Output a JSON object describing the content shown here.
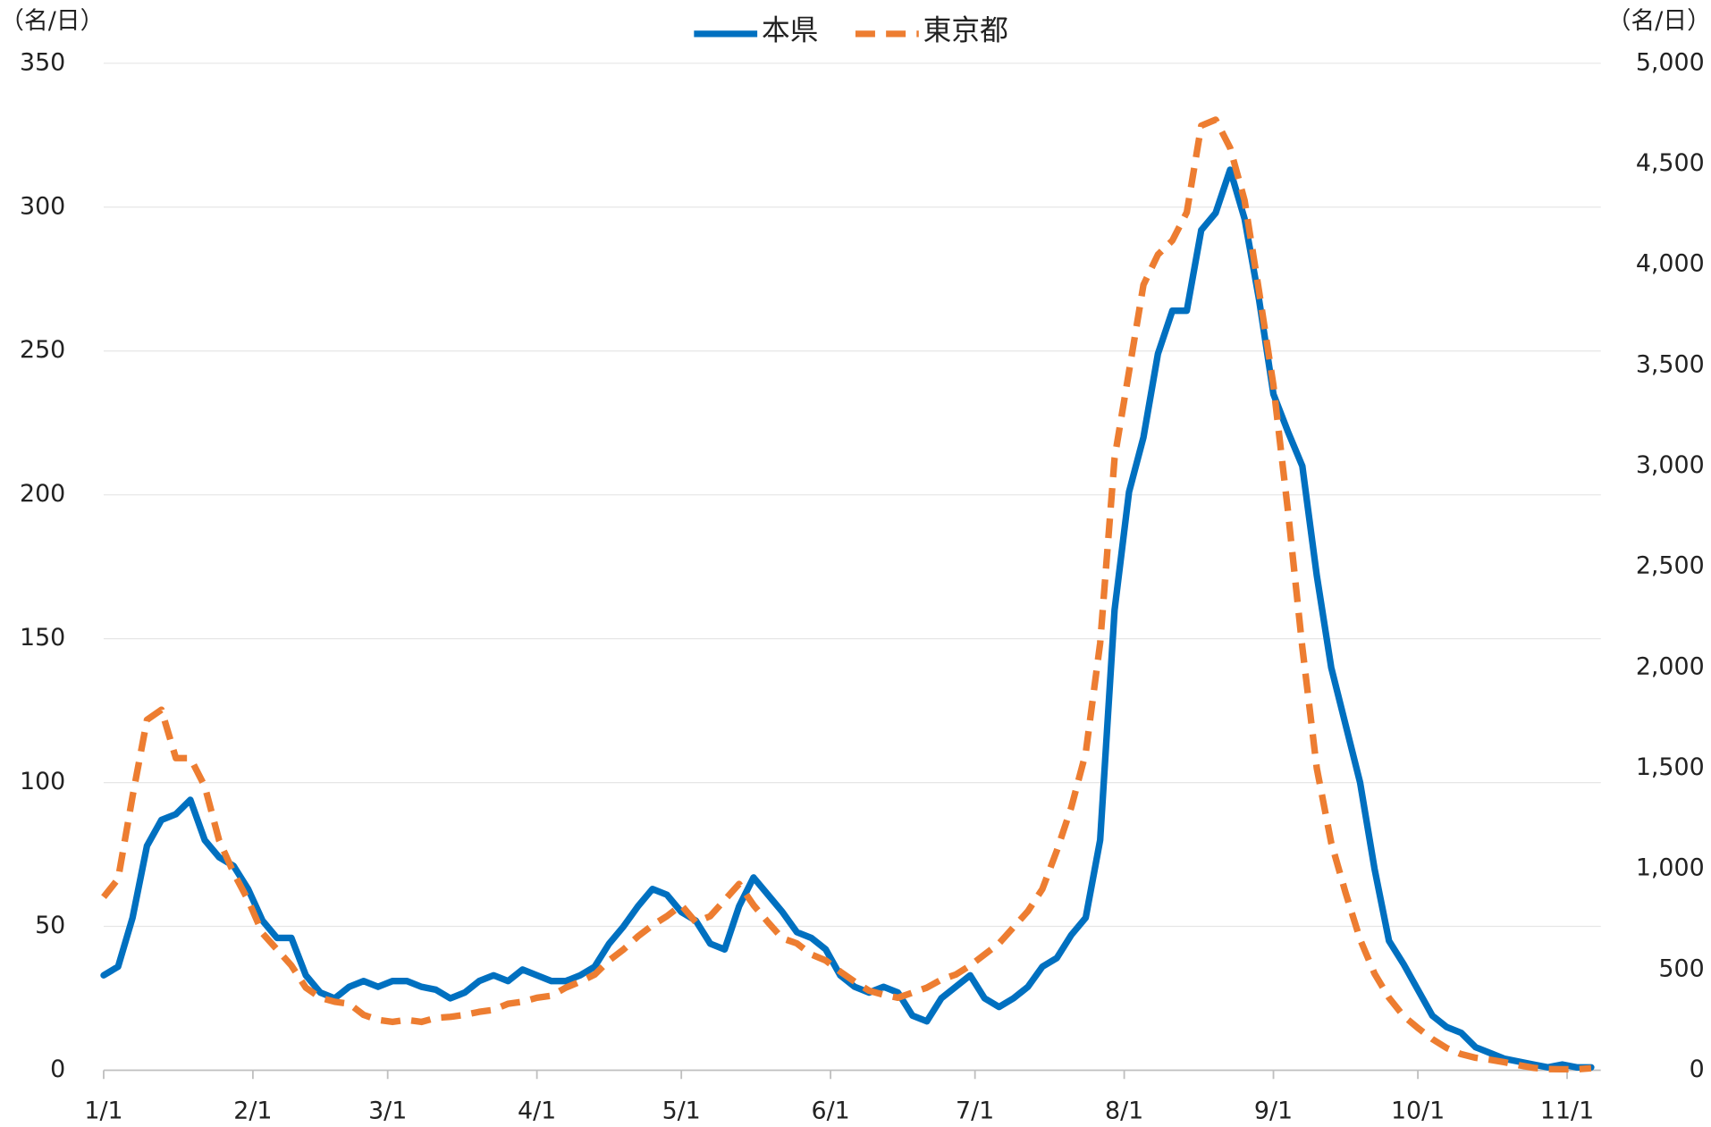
{
  "chart_data": {
    "type": "line",
    "y_label": "（名/日）",
    "y2_label": "（名/日）",
    "x": [
      0,
      3,
      6,
      9,
      12,
      15,
      18,
      21,
      24,
      27,
      30,
      33,
      36,
      39,
      42,
      45,
      48,
      51,
      54,
      57,
      60,
      63,
      66,
      69,
      72,
      75,
      78,
      81,
      84,
      87,
      90,
      93,
      96,
      99,
      102,
      105,
      108,
      111,
      114,
      117,
      120,
      123,
      126,
      129,
      132,
      135,
      138,
      141,
      144,
      147,
      150,
      153,
      156,
      159,
      162,
      165,
      168,
      171,
      174,
      177,
      180,
      183,
      186,
      189,
      192,
      195,
      198,
      201,
      204,
      207,
      210,
      213,
      216,
      219,
      222,
      225,
      228,
      231,
      234,
      237,
      240,
      243,
      246,
      249,
      252,
      255,
      258,
      261,
      264,
      267,
      270,
      273,
      276,
      279,
      282,
      285,
      288,
      291,
      294,
      297,
      300,
      303,
      306,
      309
    ],
    "series": [
      {
        "name": "本県",
        "color": "#0070c0",
        "line": "solid",
        "axis": "y",
        "values": [
          33,
          36,
          53,
          78,
          87,
          89,
          94,
          80,
          74,
          71,
          63,
          52,
          46,
          46,
          33,
          27,
          25,
          29,
          31,
          29,
          31,
          31,
          29,
          28,
          25,
          27,
          31,
          33,
          31,
          35,
          33,
          31,
          31,
          33,
          36,
          44,
          50,
          57,
          63,
          61,
          55,
          52,
          44,
          42,
          57,
          67,
          61,
          55,
          48,
          46,
          42,
          33,
          29,
          27,
          29,
          27,
          19,
          17,
          25,
          29,
          33,
          25,
          22,
          25,
          29,
          36,
          39,
          47,
          53,
          80,
          160,
          201,
          220,
          249,
          264,
          264,
          292,
          298,
          313,
          296,
          268,
          235,
          222,
          210,
          172,
          140,
          120,
          100,
          70,
          45,
          37,
          28,
          19,
          15,
          13,
          8,
          6,
          4,
          3,
          2,
          1,
          2,
          1,
          1
        ]
      },
      {
        "name": "東京都",
        "color": "#ed7d31",
        "line": "dashed",
        "axis": "y2",
        "values": [
          860,
          950,
          1360,
          1740,
          1790,
          1550,
          1550,
          1410,
          1140,
          980,
          845,
          680,
          600,
          520,
          410,
          360,
          340,
          330,
          275,
          250,
          240,
          250,
          240,
          260,
          265,
          275,
          290,
          300,
          330,
          340,
          360,
          370,
          410,
          440,
          475,
          545,
          600,
          665,
          720,
          765,
          820,
          735,
          765,
          845,
          925,
          820,
          735,
          655,
          630,
          575,
          545,
          490,
          440,
          395,
          375,
          360,
          385,
          410,
          450,
          475,
          520,
          575,
          630,
          710,
          790,
          900,
          1090,
          1305,
          1575,
          2120,
          3040,
          3470,
          3900,
          4050,
          4120,
          4260,
          4690,
          4720,
          4580,
          4320,
          3870,
          3400,
          2780,
          2100,
          1500,
          1130,
          880,
          650,
          480,
          360,
          270,
          210,
          155,
          110,
          80,
          62,
          52,
          40,
          25,
          12,
          6,
          5,
          5,
          10
        ]
      }
    ],
    "xlim": [
      0,
      311
    ],
    "xticks": [
      {
        "value": 0,
        "label": "1/1"
      },
      {
        "value": 31,
        "label": "2/1"
      },
      {
        "value": 59,
        "label": "3/1"
      },
      {
        "value": 90,
        "label": "4/1"
      },
      {
        "value": 120,
        "label": "5/1"
      },
      {
        "value": 151,
        "label": "6/1"
      },
      {
        "value": 181,
        "label": "7/1"
      },
      {
        "value": 212,
        "label": "8/1"
      },
      {
        "value": 243,
        "label": "9/1"
      },
      {
        "value": 273,
        "label": "10/1"
      },
      {
        "value": 304,
        "label": "11/1"
      }
    ],
    "ylim": [
      0,
      350
    ],
    "yticks": [
      0,
      50,
      100,
      150,
      200,
      250,
      300,
      350
    ],
    "y2lim": [
      0,
      5000
    ],
    "y2ticks": [
      0,
      500,
      {
        "value": 1000,
        "label": "1,000"
      },
      {
        "value": 1500,
        "label": "1,500"
      },
      {
        "value": 2000,
        "label": "2,000"
      },
      {
        "value": 2500,
        "label": "2,500"
      },
      {
        "value": 3000,
        "label": "3,000"
      },
      {
        "value": 3500,
        "label": "3,500"
      },
      {
        "value": 4000,
        "label": "4,000"
      },
      {
        "value": 4500,
        "label": "4,500"
      },
      {
        "value": 5000,
        "label": "5,000"
      }
    ],
    "grid": true,
    "legend": "top"
  }
}
